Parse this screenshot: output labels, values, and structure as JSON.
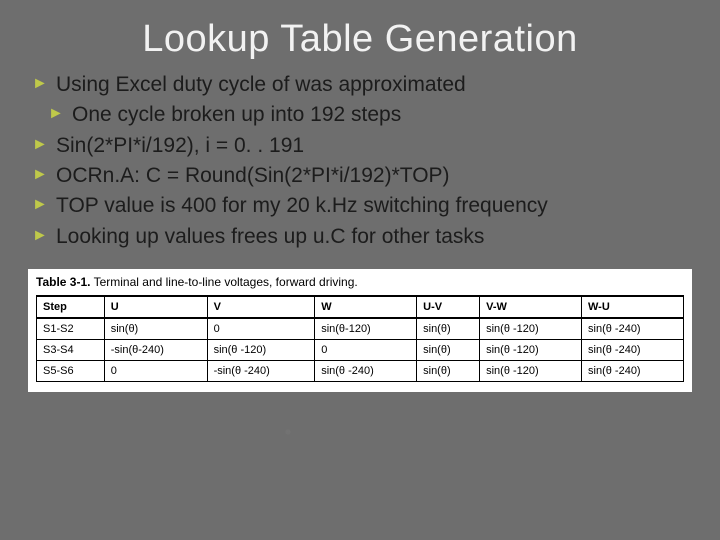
{
  "title": "Lookup Table Generation",
  "bullet_marker": "►",
  "bullets": [
    {
      "text": "Using Excel duty cycle of was approximated",
      "indent": false
    },
    {
      "text": "One cycle broken up into 192 steps",
      "indent": true
    },
    {
      "text": "Sin(2*PI*i/192), i = 0. . 191",
      "indent": false
    },
    {
      "text": "OCRn.A: C = Round(Sin(2*PI*i/192)*TOP)",
      "indent": false
    },
    {
      "text": "TOP value is 400 for my 20 k.Hz switching frequency",
      "indent": false
    },
    {
      "text": "Looking up values frees up u.C for other tasks",
      "indent": false
    }
  ],
  "table": {
    "caption_label": "Table 3-1.",
    "caption_text": "Terminal and line-to-line voltages, forward driving.",
    "columns": [
      "Step",
      "U",
      "V",
      "W",
      "U-V",
      "V-W",
      "W-U"
    ],
    "rows": [
      [
        "S1-S2",
        "sin(θ)",
        "0",
        "sin(θ-120)",
        "sin(θ)",
        "sin(θ -120)",
        "sin(θ -240)"
      ],
      [
        "S3-S4",
        "-sin(θ-240)",
        "sin(θ -120)",
        "0",
        "sin(θ)",
        "sin(θ -120)",
        "sin(θ -240)"
      ],
      [
        "S5-S6",
        "0",
        "-sin(θ -240)",
        "sin(θ -240)",
        "sin(θ)",
        "sin(θ -120)",
        "sin(θ -240)"
      ]
    ],
    "border_color": "#000000",
    "background_color": "#ffffff",
    "header_fontweight": "bold",
    "font_family": "Arial",
    "font_size_pt": 8
  },
  "colors": {
    "slide_background": "#6e6e6e",
    "title_color": "#f2f2f2",
    "bullet_text_color": "#1c1c1c",
    "bullet_marker_color": "#bfc94a"
  },
  "typography": {
    "title_fontsize_pt": 28,
    "bullet_fontsize_pt": 16,
    "font_family": "Verdana"
  }
}
